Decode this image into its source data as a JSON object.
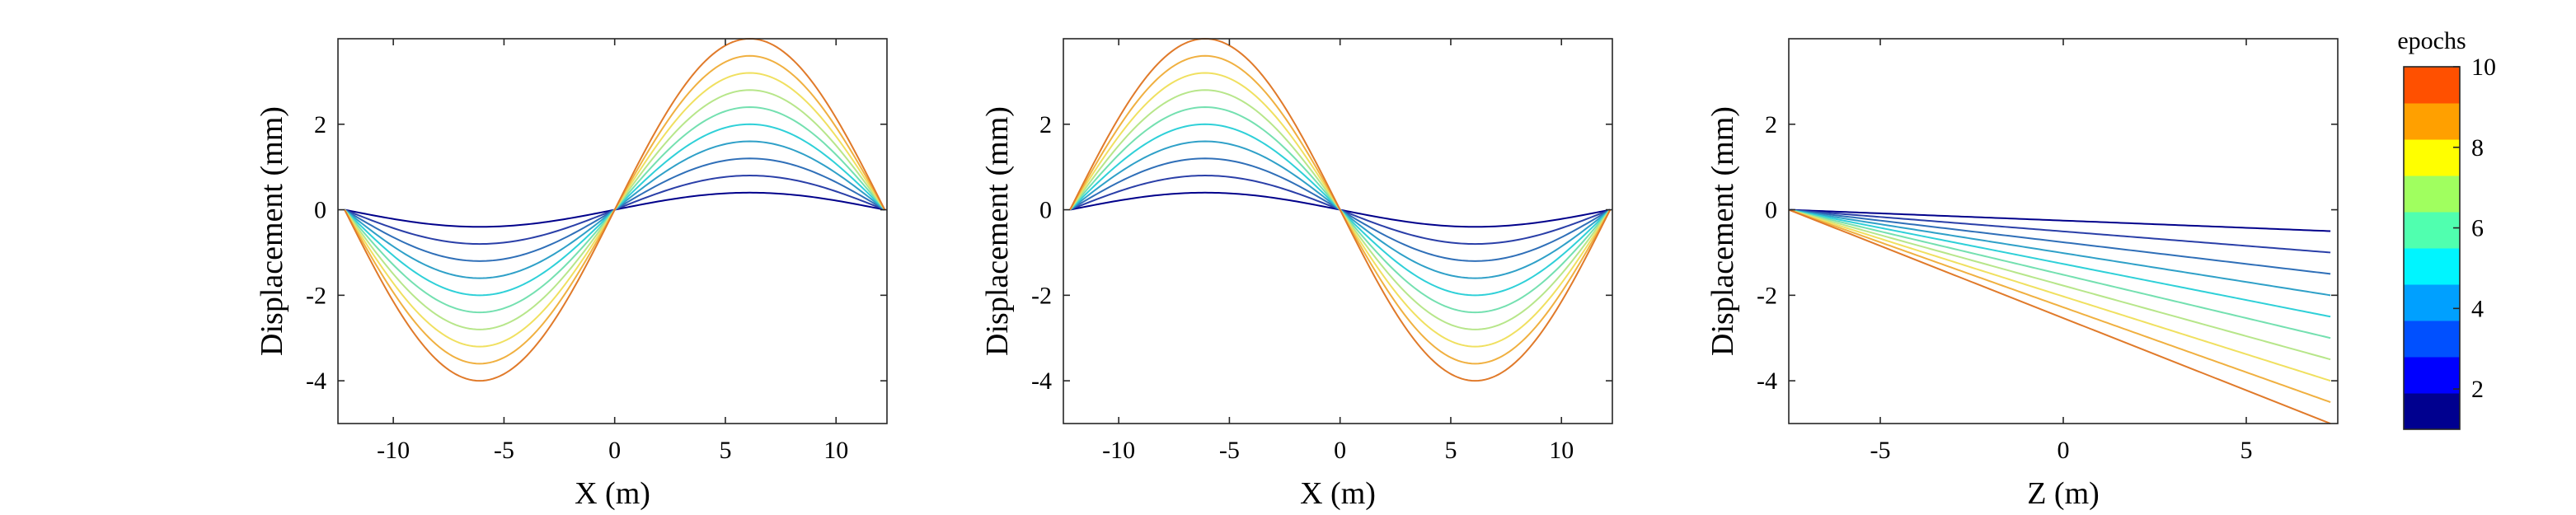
{
  "chart_data": [
    {
      "type": "line",
      "xlabel": "X (m)",
      "ylabel": "Displacement (mm)",
      "xlim": [
        -12.5,
        12.3
      ],
      "ylim": [
        -5.0,
        4.0
      ],
      "xticks": [
        -10,
        -5,
        0,
        5,
        10
      ],
      "yticks": [
        -4,
        -2,
        0,
        2
      ],
      "grid": false,
      "curve": "amplitude*sin(2*pi*x/24.4), x from -12.2 to 12.2",
      "x_range": [
        -12.2,
        12.2
      ],
      "series": [
        {
          "epoch": 1,
          "amplitude": 0.4
        },
        {
          "epoch": 2,
          "amplitude": 0.8
        },
        {
          "epoch": 3,
          "amplitude": 1.2
        },
        {
          "epoch": 4,
          "amplitude": 1.6
        },
        {
          "epoch": 5,
          "amplitude": 2.0
        },
        {
          "epoch": 6,
          "amplitude": 2.4
        },
        {
          "epoch": 7,
          "amplitude": 2.8
        },
        {
          "epoch": 8,
          "amplitude": 3.2
        },
        {
          "epoch": 9,
          "amplitude": 3.6
        },
        {
          "epoch": 10,
          "amplitude": 4.0
        }
      ]
    },
    {
      "type": "line",
      "xlabel": "X (m)",
      "ylabel": "Displacement (mm)",
      "xlim": [
        -12.5,
        12.3
      ],
      "ylim": [
        -5.0,
        4.0
      ],
      "xticks": [
        -10,
        -5,
        0,
        5,
        10
      ],
      "yticks": [
        -4,
        -2,
        0,
        2
      ],
      "grid": false,
      "curve": "-amplitude*sin(2*pi*x/24.4), x from -12.2 to 12.2",
      "x_range": [
        -12.2,
        12.2
      ],
      "series": [
        {
          "epoch": 1,
          "amplitude": 0.4
        },
        {
          "epoch": 2,
          "amplitude": 0.8
        },
        {
          "epoch": 3,
          "amplitude": 1.2
        },
        {
          "epoch": 4,
          "amplitude": 1.6
        },
        {
          "epoch": 5,
          "amplitude": 2.0
        },
        {
          "epoch": 6,
          "amplitude": 2.4
        },
        {
          "epoch": 7,
          "amplitude": 2.8
        },
        {
          "epoch": 8,
          "amplitude": 3.2
        },
        {
          "epoch": 9,
          "amplitude": 3.6
        },
        {
          "epoch": 10,
          "amplitude": 4.0
        }
      ]
    },
    {
      "type": "line",
      "xlabel": "Z (m)",
      "ylabel": "Displacement (mm)",
      "xlim": [
        -7.5,
        7.5
      ],
      "ylim": [
        -5.0,
        4.0
      ],
      "xticks": [
        -5,
        0,
        5
      ],
      "yticks": [
        -4,
        -2,
        0,
        2
      ],
      "grid": false,
      "curve": "straight line from (-7.5, 0) to (7.3, end_value)",
      "x_range": [
        -7.5,
        7.3
      ],
      "series": [
        {
          "epoch": 1,
          "end_value": -0.5
        },
        {
          "epoch": 2,
          "end_value": -1.0
        },
        {
          "epoch": 3,
          "end_value": -1.5
        },
        {
          "epoch": 4,
          "end_value": -2.0
        },
        {
          "epoch": 5,
          "end_value": -2.5
        },
        {
          "epoch": 6,
          "end_value": -3.0
        },
        {
          "epoch": 7,
          "end_value": -3.5
        },
        {
          "epoch": 8,
          "end_value": -4.0
        },
        {
          "epoch": 9,
          "end_value": -4.5
        },
        {
          "epoch": 10,
          "end_value": -5.0
        }
      ]
    }
  ],
  "colorbar": {
    "title": "epochs",
    "range": [
      1,
      10
    ],
    "ticks": [
      2,
      4,
      6,
      8,
      10
    ],
    "colors": [
      "#00008f",
      "#0000ff",
      "#0050ff",
      "#00a0ff",
      "#00f5ff",
      "#50ffaf",
      "#a0ff5f",
      "#ffff00",
      "#ffa000",
      "#ff5000"
    ]
  },
  "line_colors": [
    "#00008b",
    "#2a3fa8",
    "#2f6fb8",
    "#2fa0c8",
    "#2fd0d8",
    "#74e0b0",
    "#b7e68a",
    "#f0e060",
    "#f0b040",
    "#e07a2a"
  ]
}
